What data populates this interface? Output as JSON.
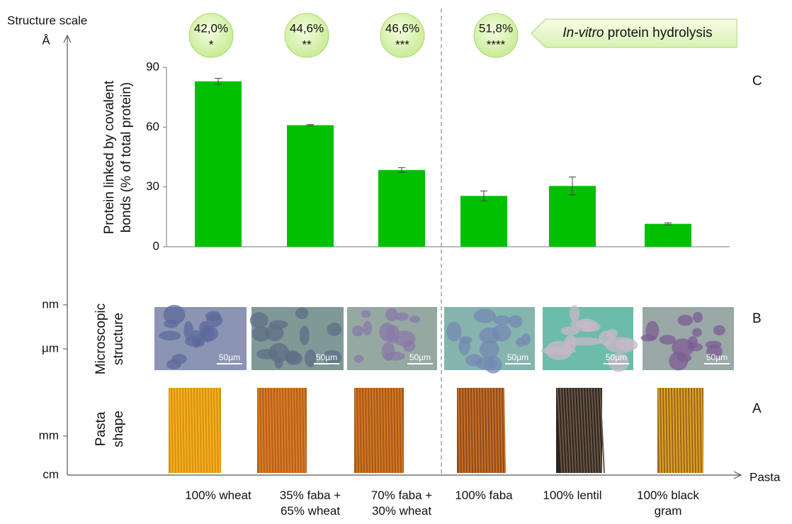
{
  "chart_data": {
    "type": "bar",
    "ylabel": [
      "Protein linked by covalent",
      "bonds (% of total protein)"
    ],
    "categories": [
      "100% wheat",
      "35% faba + 65% wheat",
      "70% faba + 30% wheat",
      "100% faba",
      "100% lentil",
      "100% black gram"
    ],
    "values": [
      83,
      61,
      38.5,
      25.5,
      30.5,
      11.5
    ],
    "errors": [
      1.5,
      0.3,
      1.2,
      2.5,
      4.5,
      0.5
    ],
    "color": "#00c000",
    "ylim": [
      0,
      90
    ],
    "yticks": [
      0,
      30,
      60,
      90
    ]
  },
  "scale_axis": {
    "title": "Structure scale",
    "units": [
      "Å",
      "nm",
      "µm",
      "mm",
      "cm"
    ],
    "x_label": "Pasta"
  },
  "hydrolysis": {
    "title_italic": "In-vitro",
    "title_rest": "protein hydrolysis",
    "labels": [
      {
        "percent": "42,0%",
        "significance": "*"
      },
      {
        "percent": "44,6%",
        "significance": "**"
      },
      {
        "percent": "46,6%",
        "significance": "***"
      },
      {
        "percent": "51,8%",
        "significance": "****"
      }
    ]
  },
  "rows": [
    [
      "Microscopic",
      "structure"
    ],
    [
      "Pasta",
      "shape"
    ]
  ],
  "panels": [
    "C",
    "B",
    "A"
  ],
  "scale_bar": "50µm"
}
